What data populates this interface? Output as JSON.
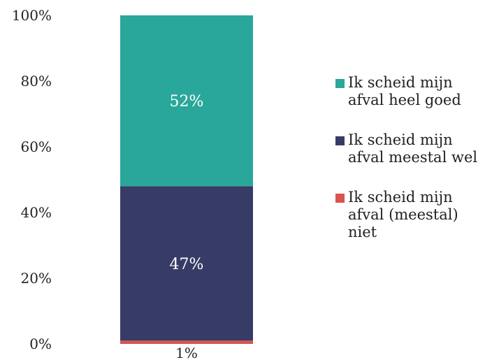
{
  "chart_data": {
    "type": "bar",
    "stacked": true,
    "categories": [
      ""
    ],
    "series": [
      {
        "name": "Ik scheid mijn\nafval (meestal)\nniet",
        "values": [
          1
        ],
        "label": "1%",
        "color": "#d9534f"
      },
      {
        "name": "Ik scheid mijn\nafval meestal wel",
        "values": [
          47
        ],
        "label": "47%",
        "color": "#373c66"
      },
      {
        "name": "Ik scheid mijn\nafval heel goed",
        "values": [
          52
        ],
        "label": "52%",
        "color": "#2aa79b"
      }
    ],
    "ylim": [
      0,
      100
    ],
    "yticks": [
      "0%",
      "20%",
      "40%",
      "60%",
      "80%",
      "100%"
    ],
    "title": "",
    "xlabel": "",
    "ylabel": "",
    "grid": false,
    "legend_position": "right"
  }
}
